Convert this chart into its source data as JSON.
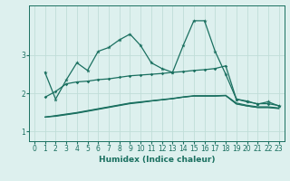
{
  "xlabel": "Humidex (Indice chaleur)",
  "bg_color": "#ddf0ee",
  "grid_color": "#c0ddd8",
  "line_color": "#1a7060",
  "xlim": [
    -0.5,
    23.5
  ],
  "ylim": [
    0.75,
    4.3
  ],
  "yticks": [
    1,
    2,
    3
  ],
  "xticks": [
    0,
    1,
    2,
    3,
    4,
    5,
    6,
    7,
    8,
    9,
    10,
    11,
    12,
    13,
    14,
    15,
    16,
    17,
    18,
    19,
    20,
    21,
    22,
    23
  ],
  "series": {
    "line1_x": [
      1,
      2,
      3,
      4,
      5,
      6,
      7,
      8,
      9,
      10,
      11,
      12,
      13,
      14,
      15,
      16,
      17,
      18,
      19,
      20,
      21,
      22,
      23
    ],
    "line1_y": [
      2.55,
      1.85,
      2.35,
      2.8,
      2.6,
      3.1,
      3.2,
      3.4,
      3.55,
      3.25,
      2.8,
      2.65,
      2.55,
      3.25,
      3.9,
      3.9,
      3.1,
      2.5,
      1.85,
      1.8,
      1.72,
      1.78,
      1.67
    ],
    "line2_x": [
      1,
      2,
      3,
      4,
      5,
      6,
      7,
      8,
      9,
      10,
      11,
      12,
      13,
      14,
      15,
      16,
      17,
      18,
      19,
      20,
      21,
      22,
      23
    ],
    "line2_y": [
      1.9,
      2.05,
      2.25,
      2.3,
      2.32,
      2.36,
      2.38,
      2.42,
      2.46,
      2.48,
      2.5,
      2.52,
      2.55,
      2.57,
      2.6,
      2.62,
      2.65,
      2.72,
      1.85,
      1.78,
      1.73,
      1.73,
      1.68
    ],
    "line3_x": [
      1,
      2,
      3,
      4,
      5,
      6,
      7,
      8,
      9,
      10,
      11,
      12,
      13,
      14,
      15,
      16,
      17,
      18,
      19,
      20,
      21,
      22,
      23
    ],
    "line3_y": [
      1.38,
      1.4,
      1.44,
      1.48,
      1.53,
      1.58,
      1.63,
      1.68,
      1.73,
      1.76,
      1.8,
      1.83,
      1.86,
      1.9,
      1.93,
      1.93,
      1.93,
      1.94,
      1.72,
      1.67,
      1.63,
      1.63,
      1.6
    ],
    "line4_x": [
      1,
      2,
      3,
      4,
      5,
      6,
      7,
      8,
      9,
      10,
      11,
      12,
      13,
      14,
      15,
      16,
      17,
      18,
      19,
      20,
      21,
      22,
      23
    ],
    "line4_y": [
      1.38,
      1.42,
      1.46,
      1.5,
      1.55,
      1.6,
      1.65,
      1.7,
      1.75,
      1.78,
      1.81,
      1.84,
      1.87,
      1.91,
      1.94,
      1.94,
      1.94,
      1.95,
      1.75,
      1.69,
      1.65,
      1.65,
      1.62
    ],
    "line5_x": [
      1,
      2,
      3,
      4,
      5,
      6,
      7,
      8,
      9,
      10,
      11,
      12,
      13,
      14,
      15,
      16,
      17,
      18,
      19,
      20,
      21,
      22,
      23
    ],
    "line5_y": [
      1.38,
      1.41,
      1.45,
      1.49,
      1.54,
      1.59,
      1.64,
      1.69,
      1.74,
      1.77,
      1.8,
      1.83,
      1.86,
      1.9,
      1.93,
      1.93,
      1.93,
      1.94,
      1.73,
      1.67,
      1.63,
      1.63,
      1.61
    ]
  }
}
